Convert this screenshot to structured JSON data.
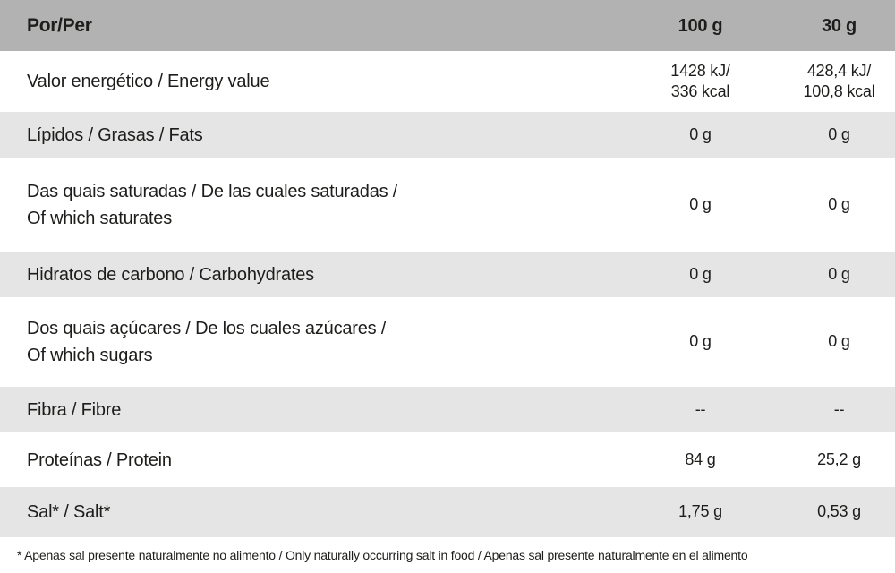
{
  "colors": {
    "header_bg": "#b2b2b2",
    "stripe_bg": "#e5e5e5",
    "row_bg": "#ffffff",
    "text": "#1d1d1b"
  },
  "table": {
    "header": {
      "per_label": "Por/Per",
      "col_100g": "100 g",
      "col_30g": "30 g"
    },
    "rows": [
      {
        "label": "Valor energético / Energy value",
        "per100": "1428 kJ/\n336 kcal",
        "per30": "428,4 kJ/\n100,8 kcal"
      },
      {
        "label": "Lípidos / Grasas / Fats",
        "per100": "0 g",
        "per30": "0 g"
      },
      {
        "label": "Das quais saturadas / De las cuales saturadas /\nOf which saturates",
        "per100": "0 g",
        "per30": "0 g"
      },
      {
        "label": "Hidratos de carbono / Carbohydrates",
        "per100": "0 g",
        "per30": "0 g"
      },
      {
        "label": "Dos quais açúcares / De los cuales azúcares /\nOf which sugars",
        "per100": "0 g",
        "per30": "0 g"
      },
      {
        "label": "Fibra / Fibre",
        "per100": "--",
        "per30": "--"
      },
      {
        "label": "Proteínas / Protein",
        "per100": "84 g",
        "per30": "25,2 g"
      },
      {
        "label": "Sal* / Salt*",
        "per100": "1,75 g",
        "per30": "0,53 g"
      }
    ],
    "footnote": "* Apenas sal presente naturalmente no alimento / Only naturally occurring salt in food / Apenas sal presente naturalmente en el alimento"
  }
}
